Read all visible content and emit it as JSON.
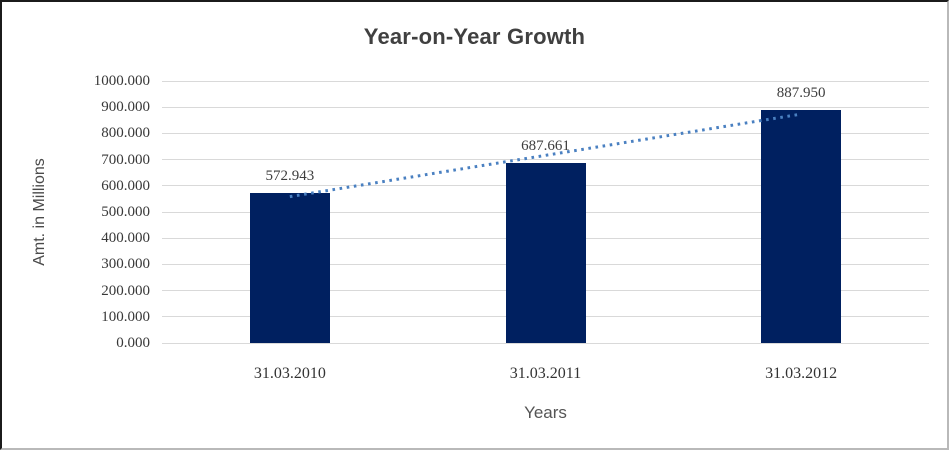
{
  "frame": {
    "background": "#ffffff",
    "border_dark": "#1b1b1b",
    "border_light": "#b9b9b9"
  },
  "chart_data": {
    "type": "bar",
    "title": "Year-on-Year Growth",
    "categories": [
      "31.03.2010",
      "31.03.2011",
      "31.03.2012"
    ],
    "values": [
      572.943,
      687.661,
      887.95
    ],
    "value_labels": [
      "572.943",
      "687.661",
      "887.950"
    ],
    "xlabel": "Years",
    "ylabel": "Amt. in Millions",
    "ylim": [
      0,
      1000
    ],
    "ytick_step": 100,
    "ytick_labels": [
      "0.000",
      "100.000",
      "200.000",
      "300.000",
      "400.000",
      "500.000",
      "600.000",
      "700.000",
      "800.000",
      "900.000",
      "1000.000"
    ],
    "grid": true,
    "legend_position": "none",
    "bar_color": "#002060",
    "gridline_color": "#d9d9d9",
    "title_color": "#404040",
    "trendline": {
      "type": "linear",
      "style": "dotted",
      "color": "#4a80c1"
    }
  }
}
